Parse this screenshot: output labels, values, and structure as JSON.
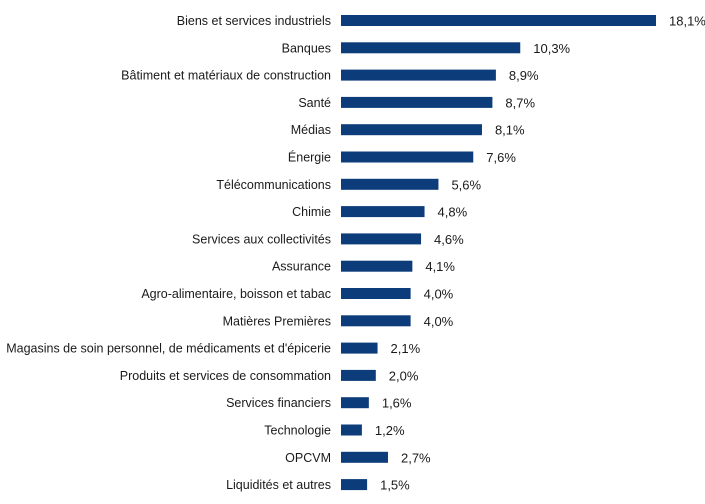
{
  "chart_data": {
    "type": "bar",
    "orientation": "horizontal",
    "categories": [
      "Biens et services industriels",
      "Banques",
      "Bâtiment et matériaux de construction",
      "Santé",
      "Médias",
      "Énergie",
      "Télécommunications",
      "Chimie",
      "Services aux collectivités",
      "Assurance",
      "Agro-alimentaire, boisson et tabac",
      "Matières Premières",
      "Magasins de soin personnel, de médicaments et d'épicerie",
      "Produits et services de consommation",
      "Services financiers",
      "Technologie",
      "OPCVM",
      "Liquidités et autres"
    ],
    "values": [
      18.1,
      10.3,
      8.9,
      8.7,
      8.1,
      7.6,
      5.6,
      4.8,
      4.6,
      4.1,
      4.0,
      4.0,
      2.1,
      2.0,
      1.6,
      1.2,
      2.7,
      1.5
    ],
    "value_labels": [
      "18,1%",
      "10,3%",
      "8,9%",
      "8,7%",
      "8,1%",
      "7,6%",
      "5,6%",
      "4,8%",
      "4,6%",
      "4,1%",
      "4,0%",
      "4,0%",
      "2,1%",
      "2,0%",
      "1,6%",
      "1,2%",
      "2,7%",
      "1,5%"
    ],
    "title": "",
    "xlabel": "",
    "ylabel": "",
    "xlim": [
      0,
      18.1
    ],
    "grid": false,
    "legend": "none",
    "bar_color": "#0d3c7a"
  }
}
